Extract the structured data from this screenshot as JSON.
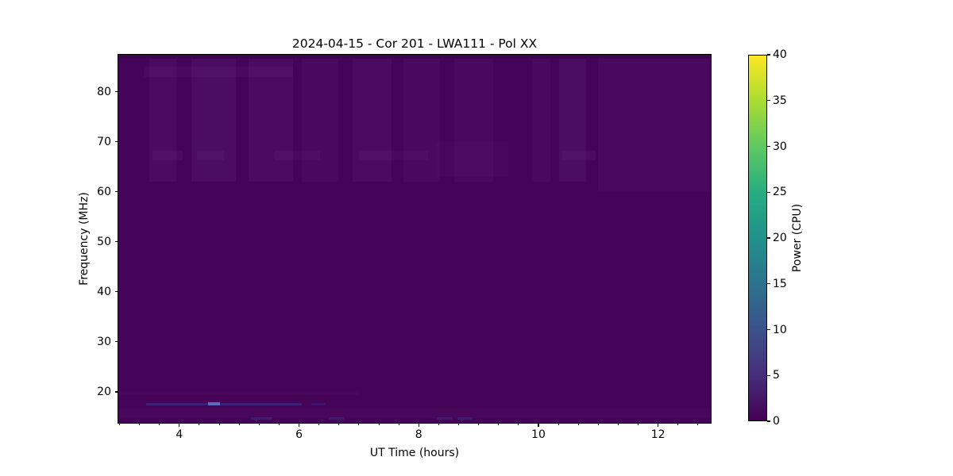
{
  "figure": {
    "background": "#ffffff"
  },
  "chart_data": {
    "type": "heatmap",
    "title": "2024-04-15 - Cor 201 - LWA111 - Pol XX",
    "xlabel": "UT Time (hours)",
    "ylabel": "Frequency (MHz)",
    "x_range": [
      2.98,
      12.88
    ],
    "y_range": [
      13.8,
      87.4
    ],
    "x_ticks": [
      4,
      6,
      8,
      10,
      12
    ],
    "x_minor_step": 0.3333333,
    "y_ticks": [
      20,
      30,
      40,
      50,
      60,
      70,
      80
    ],
    "grid": false,
    "colormap": "viridis",
    "background_power": 1,
    "base_color": "#460458",
    "data_summary": "Dynamic spectrum is nearly uniform at ~0-2 power (dark viridis purple) across 3-12.9 UT hours and 13.8-87.4 MHz, with faint lighter vertical banding above ~62 MHz, subtle light streaks near 67 MHz and 84 MHz, and a narrowband blue RFI line near 17.5 MHz between ~3.5 and 6 UT brightest near 4.6 UT",
    "colorbar": {
      "label": "Power (CPU)",
      "range": [
        0,
        40
      ],
      "ticks": [
        0,
        5,
        10,
        15,
        20,
        25,
        30,
        35,
        40
      ],
      "gradient": [
        {
          "pos": 0.0,
          "color": "#440154"
        },
        {
          "pos": 0.125,
          "color": "#472d7b"
        },
        {
          "pos": 0.25,
          "color": "#3b528b"
        },
        {
          "pos": 0.375,
          "color": "#2c728e"
        },
        {
          "pos": 0.5,
          "color": "#21918c"
        },
        {
          "pos": 0.625,
          "color": "#27ad81"
        },
        {
          "pos": 0.75,
          "color": "#5ec962"
        },
        {
          "pos": 0.875,
          "color": "#aadc32"
        },
        {
          "pos": 1.0,
          "color": "#fde725"
        }
      ]
    },
    "features": [
      {
        "type": "hband",
        "t": [
          2.98,
          12.88
        ],
        "f": [
          86.6,
          87.4
        ],
        "color": "#30063f",
        "opacity": 0.45
      },
      {
        "type": "vband",
        "t": [
          3.5,
          3.95
        ],
        "f": [
          62,
          86.6
        ],
        "color": "#9b6ec4",
        "opacity": 0.07
      },
      {
        "type": "vband",
        "t": [
          4.2,
          4.95
        ],
        "f": [
          62,
          86.6
        ],
        "color": "#9b6ec4",
        "opacity": 0.08
      },
      {
        "type": "vband",
        "t": [
          5.15,
          5.9
        ],
        "f": [
          62,
          86.6
        ],
        "color": "#9b6ec4",
        "opacity": 0.07
      },
      {
        "type": "vband",
        "t": [
          6.05,
          6.65
        ],
        "f": [
          62,
          86.6
        ],
        "color": "#9b6ec4",
        "opacity": 0.06
      },
      {
        "type": "vband",
        "t": [
          6.9,
          7.55
        ],
        "f": [
          62,
          86.6
        ],
        "color": "#9b6ec4",
        "opacity": 0.07
      },
      {
        "type": "vband",
        "t": [
          7.75,
          8.35
        ],
        "f": [
          62,
          86.6
        ],
        "color": "#9b6ec4",
        "opacity": 0.06
      },
      {
        "type": "vband",
        "t": [
          8.6,
          9.25
        ],
        "f": [
          62,
          86.6
        ],
        "color": "#9b6ec4",
        "opacity": 0.05
      },
      {
        "type": "vband",
        "t": [
          9.9,
          10.2
        ],
        "f": [
          62,
          86.6
        ],
        "color": "#9b6ec4",
        "opacity": 0.06
      },
      {
        "type": "vband",
        "t": [
          10.35,
          10.8
        ],
        "f": [
          62,
          86.6
        ],
        "color": "#9b6ec4",
        "opacity": 0.08
      },
      {
        "type": "vband",
        "t": [
          11.0,
          12.88
        ],
        "f": [
          60,
          86.6
        ],
        "color": "#9b6ec4",
        "opacity": 0.05
      },
      {
        "type": "hband",
        "t": [
          3.4,
          5.9
        ],
        "f": [
          83,
          85
        ],
        "color": "#9b6ec4",
        "opacity": 0.05
      },
      {
        "type": "hband",
        "t": [
          3.55,
          4.05
        ],
        "f": [
          66.3,
          68.2
        ],
        "color": "#9b6ec4",
        "opacity": 0.07
      },
      {
        "type": "hband",
        "t": [
          4.3,
          4.75
        ],
        "f": [
          66.3,
          68.2
        ],
        "color": "#9b6ec4",
        "opacity": 0.07
      },
      {
        "type": "hband",
        "t": [
          5.6,
          6.35
        ],
        "f": [
          66.3,
          68.2
        ],
        "color": "#9b6ec4",
        "opacity": 0.06
      },
      {
        "type": "hband",
        "t": [
          7.0,
          8.15
        ],
        "f": [
          66.3,
          68.2
        ],
        "color": "#9b6ec4",
        "opacity": 0.06
      },
      {
        "type": "hband",
        "t": [
          10.4,
          10.95
        ],
        "f": [
          66.3,
          68.2
        ],
        "color": "#9b6ec4",
        "opacity": 0.07
      },
      {
        "type": "hband",
        "t": [
          8.3,
          9.5
        ],
        "f": [
          63,
          70
        ],
        "color": "#9b6ec4",
        "opacity": 0.04
      },
      {
        "type": "hband",
        "t": [
          2.98,
          12.88
        ],
        "f": [
          14.8,
          16.6
        ],
        "color": "#9b6ec4",
        "opacity": 0.04
      },
      {
        "type": "hband",
        "t": [
          2.98,
          7.0
        ],
        "f": [
          19.3,
          20.1
        ],
        "color": "#9b6ec4",
        "opacity": 0.04
      },
      {
        "type": "hline",
        "t": [
          3.45,
          6.05
        ],
        "f": [
          17.35,
          17.75
        ],
        "color": "#353a96",
        "opacity": 0.5
      },
      {
        "type": "hline",
        "t": [
          4.48,
          4.68
        ],
        "f": [
          17.25,
          17.85
        ],
        "color": "#5c74c8",
        "opacity": 0.9
      },
      {
        "type": "hline",
        "t": [
          6.2,
          6.45
        ],
        "f": [
          17.35,
          17.7
        ],
        "color": "#353a96",
        "opacity": 0.3
      },
      {
        "type": "hline",
        "t": [
          5.2,
          5.55
        ],
        "f": [
          14.4,
          14.9
        ],
        "color": "#3a4f9e",
        "opacity": 0.3
      },
      {
        "type": "hline",
        "t": [
          6.5,
          6.75
        ],
        "f": [
          14.4,
          14.9
        ],
        "color": "#3a4f9e",
        "opacity": 0.25
      },
      {
        "type": "hline",
        "t": [
          8.3,
          8.55
        ],
        "f": [
          14.4,
          14.9
        ],
        "color": "#3a4f9e",
        "opacity": 0.3
      },
      {
        "type": "hline",
        "t": [
          8.65,
          8.9
        ],
        "f": [
          14.4,
          14.9
        ],
        "color": "#3a4f9e",
        "opacity": 0.3
      }
    ]
  }
}
